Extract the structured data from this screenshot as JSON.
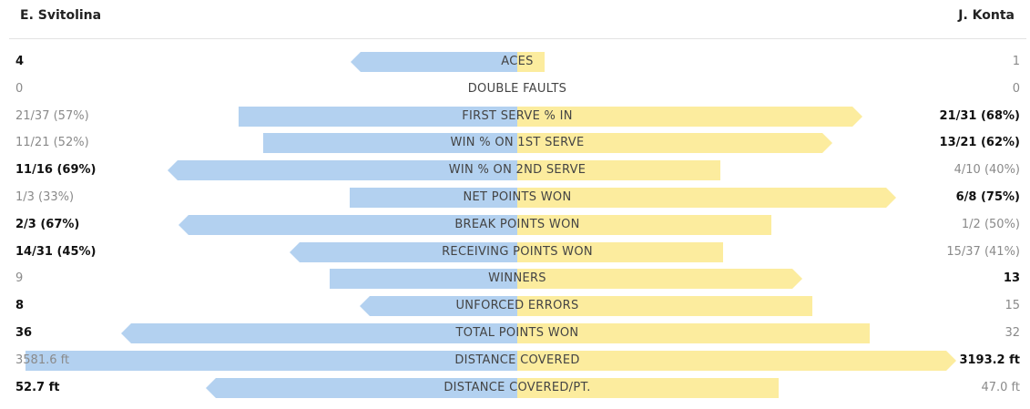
{
  "players": {
    "left": "E. Svitolina",
    "right": "J. Konta"
  },
  "colors": {
    "left_bar": "#b3d1f0",
    "right_bar": "#fcec9e"
  },
  "stats": [
    {
      "label": "ACES",
      "left": "4",
      "right": "1",
      "left_frac": 0.338,
      "right_frac": 0.056,
      "winner": "left"
    },
    {
      "label": "DOUBLE FAULTS",
      "left": "0",
      "right": "0",
      "left_frac": 0,
      "right_frac": 0,
      "winner": "none"
    },
    {
      "label": "FIRST SERVE % IN",
      "left": "21/37 (57%)",
      "right": "21/31 (68%)",
      "left_frac": 0.567,
      "right_frac": 0.702,
      "winner": "right"
    },
    {
      "label": "WIN % ON 1ST SERVE",
      "left": "11/21 (52%)",
      "right": "13/21 (62%)",
      "left_frac": 0.517,
      "right_frac": 0.641,
      "winner": "right"
    },
    {
      "label": "WIN % ON 2ND SERVE",
      "left": "11/16 (69%)",
      "right": "4/10 (40%)",
      "left_frac": 0.711,
      "right_frac": 0.413,
      "winner": "left"
    },
    {
      "label": "NET POINTS WON",
      "left": "1/3 (33%)",
      "right": "6/8 (75%)",
      "left_frac": 0.34,
      "right_frac": 0.77,
      "winner": "right"
    },
    {
      "label": "BREAK POINTS WON",
      "left": "2/3 (67%)",
      "right": "1/2 (50%)",
      "left_frac": 0.689,
      "right_frac": 0.516,
      "winner": "left"
    },
    {
      "label": "RECEIVING POINTS WON",
      "left": "14/31 (45%)",
      "right": "15/37 (41%)",
      "left_frac": 0.463,
      "right_frac": 0.419,
      "winner": "left"
    },
    {
      "label": "WINNERS",
      "left": "9",
      "right": "13",
      "left_frac": 0.381,
      "right_frac": 0.58,
      "winner": "right"
    },
    {
      "label": "UNFORCED ERRORS",
      "left": "8",
      "right": "15",
      "left_frac": 0.32,
      "right_frac": 0.6,
      "winner": "left"
    },
    {
      "label": "TOTAL POINTS WON",
      "left": "36",
      "right": "32",
      "left_frac": 0.805,
      "right_frac": 0.716,
      "winner": "left"
    },
    {
      "label": "DISTANCE COVERED",
      "left": "3581.6 ft",
      "right": "3193.2 ft",
      "left_frac": 1.0,
      "right_frac": 0.892,
      "winner": "right"
    },
    {
      "label": "DISTANCE COVERED/PT.",
      "left": "52.7 ft",
      "right": "47.0 ft",
      "left_frac": 0.633,
      "right_frac": 0.531,
      "winner": "left"
    }
  ]
}
